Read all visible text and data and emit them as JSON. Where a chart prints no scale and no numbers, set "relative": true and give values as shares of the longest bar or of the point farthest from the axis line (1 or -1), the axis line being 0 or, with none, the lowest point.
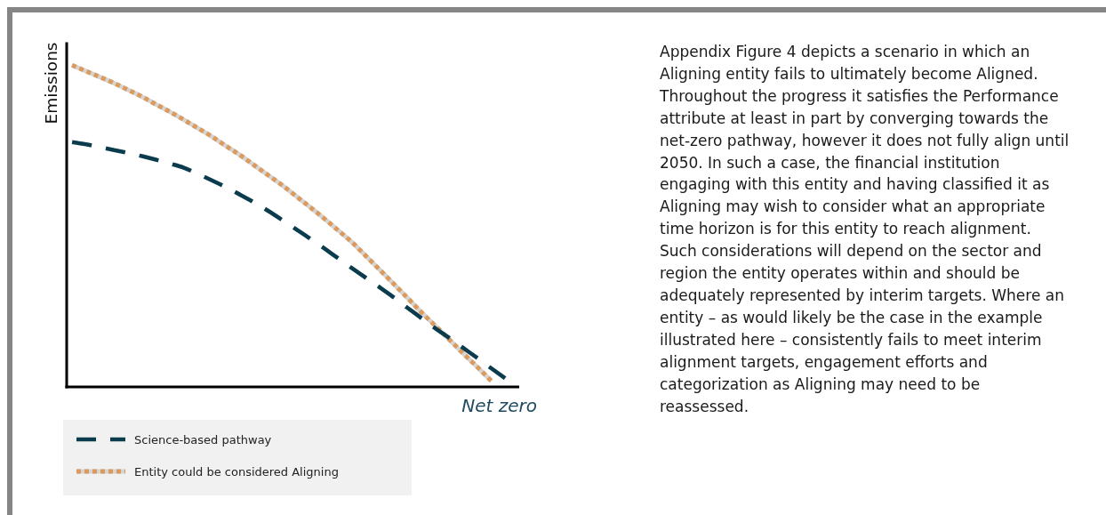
{
  "chart_data": {
    "type": "line",
    "relative": true,
    "ylabel": "Emissions",
    "xlabel": "Net zero",
    "categories": [
      null,
      null,
      null,
      null,
      null,
      null,
      null,
      null,
      null,
      null,
      null,
      null,
      null,
      null,
      null,
      null,
      null,
      null,
      null,
      null,
      null,
      null,
      null,
      null,
      null,
      null,
      null,
      null,
      null,
      null,
      null,
      null
    ],
    "series": [
      {
        "name": "Science-based pathway",
        "color": "#0b3c4e",
        "line_style": "dashed",
        "values": [
          0.761,
          0.754,
          0.745,
          0.736,
          0.727,
          0.717,
          0.706,
          0.694,
          0.681,
          0.662,
          0.642,
          0.621,
          0.598,
          0.574,
          0.548,
          0.52,
          0.491,
          0.462,
          0.432,
          0.401,
          0.37,
          0.34,
          0.31,
          0.279,
          0.246,
          0.214,
          0.182,
          0.152,
          0.121,
          0.09,
          0.058,
          0.027
        ]
      },
      {
        "name": "Entity could be considered Aligning",
        "color": "#dc9a5c",
        "line_style": "dotted",
        "values": [
          1,
          0.981,
          0.963,
          0.944,
          0.923,
          0.902,
          0.878,
          0.855,
          0.83,
          0.804,
          0.778,
          0.749,
          0.721,
          0.69,
          0.659,
          0.628,
          0.594,
          0.56,
          0.525,
          0.488,
          0.451,
          0.408,
          0.365,
          0.321,
          0.277,
          0.232,
          0.19,
          0.147,
          0.104,
          0.062,
          0.019,
          null
        ]
      }
    ],
    "legend": "bottom",
    "annotations": [
      "Appendix Figure 4 depicts a scenario in which an Aligning entity fails to ultimately become Aligned. Throughout the progress it satisfies the Performance attribute at least in part by converging towards the net-zero pathway, however it does not fully align until 2050. In such a case, the financial institution engaging with this entity and having classified it as Aligning may wish to consider what an appropriate time horizon is for this entity to reach alignment. Such considerations will depend on the sector and region the entity operates within and should be adequately represented by interim targets. Where an entity – as would likely be the case in the example illustrated here – consistently fails to meet interim alignment targets, engagement efforts and categorization as Aligning may need to be reassessed."
    ]
  }
}
